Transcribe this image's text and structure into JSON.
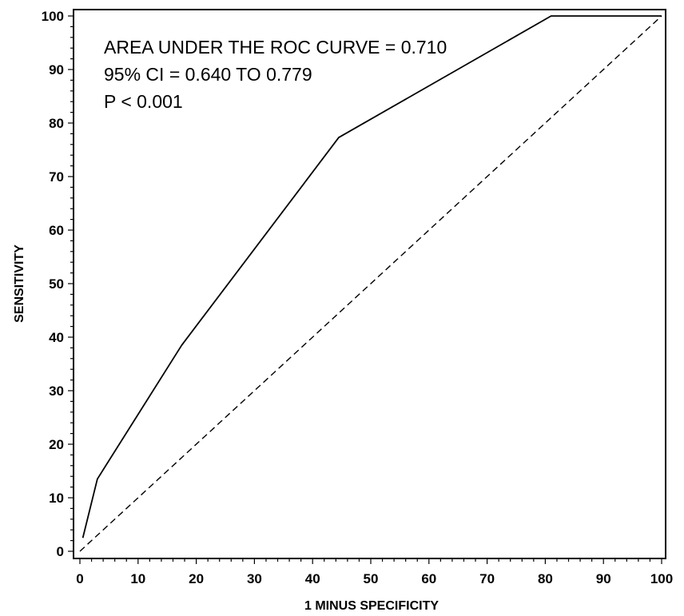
{
  "chart_data": {
    "type": "line",
    "title": "",
    "xlabel": "1 MINUS SPECIFICITY",
    "ylabel": "SENSITIVITY",
    "xlim": [
      0,
      100
    ],
    "ylim": [
      0,
      100
    ],
    "xticks": [
      0,
      10,
      20,
      30,
      40,
      50,
      60,
      70,
      80,
      90,
      100
    ],
    "yticks": [
      0,
      10,
      20,
      30,
      40,
      50,
      60,
      70,
      80,
      90,
      100
    ],
    "grid": false,
    "series": [
      {
        "style": "solid",
        "x": [
          0.5,
          3,
          17.5,
          44.5,
          81,
          100
        ],
        "y": [
          2.5,
          13.5,
          38.5,
          77.3,
          100,
          100
        ]
      },
      {
        "style": "dashed",
        "x": [
          0,
          100
        ],
        "y": [
          0,
          100
        ]
      }
    ],
    "annotations": [
      "AREA UNDER THE ROC CURVE = 0.710",
      "95% CI = 0.640 TO 0.779",
      "P <  0.001"
    ],
    "colors": {
      "line": "#000000",
      "background": "#ffffff"
    }
  }
}
